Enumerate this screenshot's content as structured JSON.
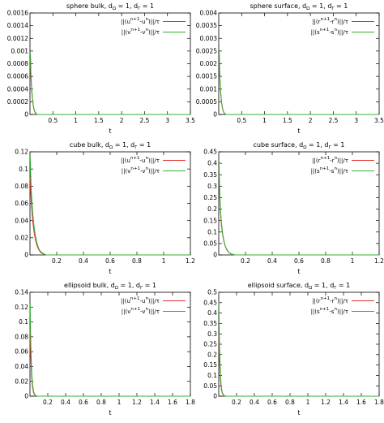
{
  "colors": {
    "series_red": "#e03030",
    "series_green": "#30b030",
    "frame": "#000000"
  },
  "chart_data": [
    {
      "type": "line",
      "title": {
        "name": "sphere bulk",
        "sub1": "Ω",
        "sub2": "Γ",
        "vals": ", d",
        "rest": " = 1, d",
        "end": " = 1"
      },
      "title_text": "sphere bulk, dΩ = 1, dΓ = 1",
      "xlabel": "t",
      "xlim": [
        0.0,
        3.5
      ],
      "ylim": [
        0,
        0.0016
      ],
      "xticks": [
        0.5,
        1,
        1.5,
        2,
        2.5,
        3,
        3.5
      ],
      "xtick_labels": [
        "0.5",
        "1",
        "1.5",
        "2",
        "2.5",
        "3",
        "3.5"
      ],
      "yticks": [
        0,
        0.0002,
        0.0004,
        0.0006,
        0.0008,
        0.001,
        0.0012,
        0.0014,
        0.0016
      ],
      "ytick_labels": [
        "0",
        "0.0002",
        "0.0004",
        "0.0006",
        "0.0008",
        "0.001",
        "0.0012",
        "0.0014",
        "0.0016"
      ],
      "legend_position": "top-right",
      "series": [
        {
          "name": "||(u^{n+1}-u^{n})||/τ",
          "legend_parts": [
            "||(u",
            "n+1",
            "-u",
            "n",
            ")||/τ"
          ],
          "color": "#e03030",
          "x": [
            0.01,
            0.02,
            0.04,
            0.06,
            0.08,
            0.1,
            0.12,
            0.14,
            0.16,
            3.5
          ],
          "y": [
            0.0009,
            0.0006,
            0.00035,
            0.0002,
            0.0001,
            5e-05,
            2e-05,
            1e-05,
            0.0,
            0.0
          ]
        },
        {
          "name": "||(v^{n+1}-v^{n})||/τ",
          "legend_parts": [
            "||(v",
            "n+1",
            "-v",
            "n",
            ")||/τ"
          ],
          "color": "#30b030",
          "x": [
            0.01,
            0.02,
            0.04,
            0.06,
            0.08,
            0.1,
            0.12,
            0.14,
            0.16,
            3.5
          ],
          "y": [
            0.00095,
            0.00065,
            0.00038,
            0.00022,
            0.00011,
            6e-05,
            3e-05,
            1e-05,
            0.0,
            0.0
          ]
        }
      ]
    },
    {
      "type": "line",
      "title": {
        "name": "sphere surface",
        "sub1": "Ω",
        "sub2": "Γ",
        "vals": ", d",
        "rest": " = 1, d",
        "end": " = 1"
      },
      "title_text": "sphere surface, dΩ = 1, dΓ = 1",
      "xlabel": "t",
      "xlim": [
        0.0,
        3.5
      ],
      "ylim": [
        0,
        0.004
      ],
      "xticks": [
        0.5,
        1,
        1.5,
        2,
        2.5,
        3,
        3.5
      ],
      "xtick_labels": [
        "0.5",
        "1",
        "1.5",
        "2",
        "2.5",
        "3",
        "3.5"
      ],
      "yticks": [
        0,
        0.0005,
        0.001,
        0.0015,
        0.002,
        0.0025,
        0.003,
        0.0035,
        0.004
      ],
      "ytick_labels": [
        "0",
        "0.0005",
        "0.001",
        "0.0015",
        "0.002",
        "0.0025",
        "0.003",
        "0.0035",
        "0.004"
      ],
      "legend_position": "top-right",
      "series": [
        {
          "name": "||(r^{n+1}-r^{n})||/τ",
          "legend_parts": [
            "||(r",
            "n+1",
            "-r",
            "n",
            ")||/τ"
          ],
          "color": "#e03030",
          "x": [
            0.01,
            0.02,
            0.04,
            0.06,
            0.08,
            0.1,
            0.12,
            0.14,
            0.16,
            3.5
          ],
          "y": [
            0.0024,
            0.0016,
            0.0009,
            0.0005,
            0.00025,
            0.00012,
            5e-05,
            2e-05,
            0.0,
            0.0
          ]
        },
        {
          "name": "||(s^{n+1}-s^{n})||/τ",
          "legend_parts": [
            "||(s",
            "n+1",
            "-s",
            "n",
            ")||/τ"
          ],
          "color": "#30b030",
          "x": [
            0.01,
            0.02,
            0.04,
            0.06,
            0.08,
            0.1,
            0.12,
            0.14,
            0.16,
            3.5
          ],
          "y": [
            0.0025,
            0.0017,
            0.00095,
            0.00052,
            0.00027,
            0.00013,
            6e-05,
            2e-05,
            0.0,
            0.0
          ]
        }
      ]
    },
    {
      "type": "line",
      "title": {
        "name": "cube bulk",
        "sub1": "Ω",
        "sub2": "Γ",
        "vals": ", d",
        "rest": " = 1, d",
        "end": " = 1"
      },
      "title_text": "cube bulk, dΩ = 1, dΓ = 1",
      "xlabel": "t",
      "xlim": [
        0.0,
        1.2
      ],
      "ylim": [
        0,
        0.12
      ],
      "xticks": [
        0.2,
        0.4,
        0.6,
        0.8,
        1,
        1.2
      ],
      "xtick_labels": [
        "0.2",
        "0.4",
        "0.6",
        "0.8",
        "1",
        "1.2"
      ],
      "yticks": [
        0,
        0.02,
        0.04,
        0.06,
        0.08,
        0.1,
        0.12
      ],
      "ytick_labels": [
        "0",
        "0.02",
        "0.04",
        "0.06",
        "0.08",
        "0.1",
        "0.12"
      ],
      "legend_position": "top-right",
      "series": [
        {
          "name": "||(u^{n+1}-u^{n})||/τ",
          "legend_parts": [
            "||(u",
            "n+1",
            "-u",
            "n",
            ")||/τ"
          ],
          "color": "#e03030",
          "x": [
            0.002,
            0.005,
            0.01,
            0.015,
            0.02,
            0.03,
            0.04,
            0.05,
            0.06,
            0.07,
            0.08,
            0.1,
            0.12,
            1.2
          ],
          "y": [
            0.09,
            0.075,
            0.06,
            0.05,
            0.04,
            0.027,
            0.018,
            0.012,
            0.008,
            0.005,
            0.003,
            0.001,
            0.0,
            0.0
          ]
        },
        {
          "name": "||(v^{n+1}-v^{n})||/τ",
          "legend_parts": [
            "||(v",
            "n+1",
            "-v",
            "n",
            ")||/τ"
          ],
          "color": "#30b030",
          "x": [
            0.002,
            0.005,
            0.01,
            0.015,
            0.02,
            0.03,
            0.04,
            0.05,
            0.06,
            0.07,
            0.08,
            0.1,
            0.12,
            1.2
          ],
          "y": [
            0.115,
            0.095,
            0.075,
            0.062,
            0.05,
            0.034,
            0.023,
            0.015,
            0.01,
            0.006,
            0.004,
            0.0015,
            0.0,
            0.0
          ]
        }
      ]
    },
    {
      "type": "line",
      "title": {
        "name": "cube surface",
        "sub1": "Ω",
        "sub2": "Γ",
        "vals": ", d",
        "rest": " = 1, d",
        "end": " = 1"
      },
      "title_text": "cube surface, dΩ = 1, dΓ = 1",
      "xlabel": "t",
      "xlim": [
        0.0,
        1.2
      ],
      "ylim": [
        0,
        0.45
      ],
      "xticks": [
        0.2,
        0.4,
        0.6,
        0.8,
        1,
        1.2
      ],
      "xtick_labels": [
        "0.2",
        "0.4",
        "0.6",
        "0.8",
        "1",
        "1.2"
      ],
      "yticks": [
        0,
        0.05,
        0.1,
        0.15,
        0.2,
        0.25,
        0.3,
        0.35,
        0.4,
        0.45
      ],
      "ytick_labels": [
        "0",
        "0.05",
        "0.1",
        "0.15",
        "0.2",
        "0.25",
        "0.3",
        "0.35",
        "0.4",
        "0.45"
      ],
      "legend_position": "top-right",
      "series": [
        {
          "name": "||(r^{n+1}-r^{n})||/τ",
          "legend_parts": [
            "||(r",
            "n+1",
            "-r",
            "n",
            ")||/τ"
          ],
          "color": "#e03030",
          "x": [
            0.002,
            0.005,
            0.01,
            0.015,
            0.02,
            0.03,
            0.04,
            0.05,
            0.06,
            0.07,
            0.08,
            0.1,
            0.12,
            1.2
          ],
          "y": [
            0.38,
            0.3,
            0.22,
            0.17,
            0.13,
            0.085,
            0.055,
            0.035,
            0.022,
            0.014,
            0.008,
            0.003,
            0.0,
            0.0
          ]
        },
        {
          "name": "||(s^{n+1}-s^{n})||/τ",
          "legend_parts": [
            "||(s",
            "n+1",
            "-s",
            "n",
            ")||/τ"
          ],
          "color": "#30b030",
          "x": [
            0.002,
            0.005,
            0.01,
            0.015,
            0.02,
            0.03,
            0.04,
            0.05,
            0.06,
            0.07,
            0.08,
            0.1,
            0.12,
            1.2
          ],
          "y": [
            0.42,
            0.33,
            0.24,
            0.18,
            0.14,
            0.09,
            0.058,
            0.037,
            0.024,
            0.015,
            0.009,
            0.003,
            0.0,
            0.0
          ]
        }
      ]
    },
    {
      "type": "line",
      "title": {
        "name": "ellipsoid bulk",
        "sub1": "Ω",
        "sub2": "Γ",
        "vals": ", d",
        "rest": " = 1, d",
        "end": " = 1"
      },
      "title_text": "ellipsoid bulk, dΩ = 1, dΓ = 1",
      "xlabel": "t",
      "xlim": [
        0.0,
        1.8
      ],
      "ylim": [
        0,
        0.14
      ],
      "xticks": [
        0.2,
        0.4,
        0.6,
        0.8,
        1,
        1.2,
        1.4,
        1.6,
        1.8
      ],
      "xtick_labels": [
        "0.2",
        "0.4",
        "0.6",
        "0.8",
        "1",
        "1.2",
        "1.4",
        "1.6",
        "1.8"
      ],
      "yticks": [
        0,
        0.02,
        0.04,
        0.06,
        0.08,
        0.1,
        0.12,
        0.14
      ],
      "ytick_labels": [
        "0",
        "0.02",
        "0.04",
        "0.06",
        "0.08",
        "0.1",
        "0.12",
        "0.14"
      ],
      "legend_position": "top-right",
      "series": [
        {
          "name": "||(u^{n+1}-u^{n})||/τ",
          "legend_parts": [
            "||(u",
            "n+1",
            "-u",
            "n",
            ")||/τ"
          ],
          "color": "#e03030",
          "x": [
            0.002,
            0.005,
            0.01,
            0.015,
            0.02,
            0.025,
            0.03,
            0.04,
            0.05,
            0.06,
            0.08,
            1.8
          ],
          "y": [
            0.09,
            0.07,
            0.05,
            0.035,
            0.024,
            0.016,
            0.011,
            0.005,
            0.002,
            0.001,
            0.0,
            0.0
          ]
        },
        {
          "name": "||(v^{n+1}-v^{n})||/τ",
          "legend_parts": [
            "||(v",
            "n+1",
            "-v",
            "n",
            ")||/τ"
          ],
          "color": "#30b030",
          "x": [
            0.002,
            0.005,
            0.01,
            0.015,
            0.02,
            0.025,
            0.03,
            0.04,
            0.05,
            0.06,
            0.08,
            1.8
          ],
          "y": [
            0.125,
            0.095,
            0.068,
            0.048,
            0.033,
            0.022,
            0.015,
            0.007,
            0.003,
            0.0012,
            0.0,
            0.0
          ]
        }
      ]
    },
    {
      "type": "line",
      "title": {
        "name": "ellipsoid surface",
        "sub1": "Ω",
        "sub2": "Γ",
        "vals": ", d",
        "rest": " = 1, d",
        "end": " = 1"
      },
      "title_text": "ellipsoid surface, dΩ = 1, dΓ = 1",
      "xlabel": "t",
      "xlim": [
        0.0,
        1.8
      ],
      "ylim": [
        0,
        0.5
      ],
      "xticks": [
        0.2,
        0.4,
        0.6,
        0.8,
        1,
        1.2,
        1.4,
        1.6,
        1.8
      ],
      "xtick_labels": [
        "0.2",
        "0.4",
        "0.6",
        "0.8",
        "1",
        "1.2",
        "1.4",
        "1.6",
        "1.8"
      ],
      "yticks": [
        0,
        0.05,
        0.1,
        0.15,
        0.2,
        0.25,
        0.3,
        0.35,
        0.4,
        0.45,
        0.5
      ],
      "ytick_labels": [
        "0",
        "0.05",
        "0.1",
        "0.15",
        "0.2",
        "0.25",
        "0.3",
        "0.35",
        "0.4",
        "0.45",
        "0.5"
      ],
      "legend_position": "top-right",
      "series": [
        {
          "name": "||(r^{n+1}-r^{n})||/τ",
          "legend_parts": [
            "||(r",
            "n+1",
            "-r",
            "n",
            ")||/τ"
          ],
          "color": "#e03030",
          "x": [
            0.002,
            0.005,
            0.01,
            0.015,
            0.02,
            0.025,
            0.03,
            0.04,
            0.05,
            0.06,
            0.08,
            1.8
          ],
          "y": [
            0.3,
            0.23,
            0.16,
            0.11,
            0.075,
            0.05,
            0.033,
            0.015,
            0.006,
            0.002,
            0.0,
            0.0
          ]
        },
        {
          "name": "||(s^{n+1}-s^{n})||/τ",
          "legend_parts": [
            "||(s",
            "n+1",
            "-s",
            "n",
            ")||/τ"
          ],
          "color": "#30b030",
          "x": [
            0.002,
            0.005,
            0.01,
            0.015,
            0.02,
            0.025,
            0.03,
            0.04,
            0.05,
            0.06,
            0.08,
            1.8
          ],
          "y": [
            0.46,
            0.34,
            0.23,
            0.155,
            0.1,
            0.066,
            0.043,
            0.019,
            0.008,
            0.003,
            0.0,
            0.0
          ]
        }
      ]
    }
  ]
}
